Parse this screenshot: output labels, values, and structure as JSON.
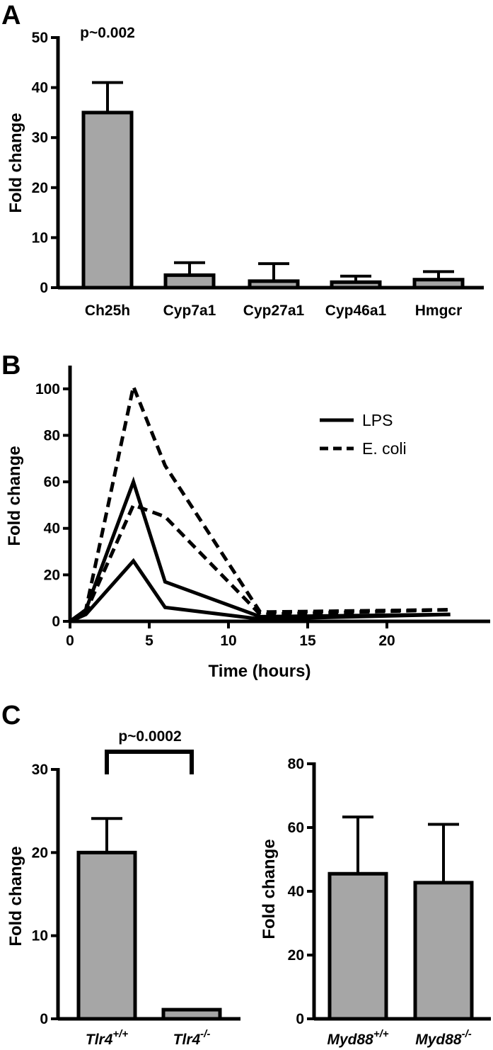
{
  "panels": {
    "A": {
      "letter": "A",
      "chart_data": {
        "type": "bar",
        "ylabel": "Fold change",
        "ylim": [
          0,
          50
        ],
        "yticks": [
          0,
          10,
          20,
          30,
          40,
          50
        ],
        "categories": [
          "Ch25h",
          "Cyp7a1",
          "Cyp27a1",
          "Cyp46a1",
          "Hmgcr"
        ],
        "values": [
          35,
          2.5,
          1.3,
          1.1,
          1.6
        ],
        "errors": [
          6,
          2.5,
          3.5,
          1.2,
          1.6
        ],
        "bar_color": "#a6a6a6",
        "annotation": "p~0.002"
      }
    },
    "B": {
      "letter": "B",
      "chart_data": {
        "type": "line",
        "xlabel": "Time (hours)",
        "ylabel": "Fold change",
        "xlim": [
          0,
          24
        ],
        "ylim": [
          0,
          110
        ],
        "xticks": [
          0,
          5,
          10,
          15,
          20
        ],
        "yticks": [
          0,
          20,
          40,
          60,
          80,
          100
        ],
        "legend": [
          "LPS",
          "E. coli"
        ],
        "legend_position": "top-right",
        "series": [
          {
            "legend": "LPS",
            "style": "solid",
            "x": [
              0,
              1,
              4,
              6,
              12,
              24
            ],
            "y": [
              0,
              5,
              60,
              17,
              2,
              3
            ]
          },
          {
            "legend": "LPS",
            "style": "solid",
            "x": [
              0,
              1,
              4,
              6,
              12,
              24
            ],
            "y": [
              0,
              3,
              26,
              6,
              1,
              3
            ]
          },
          {
            "legend": "E. coli",
            "style": "dashed",
            "x": [
              0,
              1,
              4,
              6,
              12,
              24
            ],
            "y": [
              0,
              5,
              101,
              67,
              4,
              5
            ]
          },
          {
            "legend": "E. coli",
            "style": "dashed",
            "x": [
              0,
              1,
              4,
              6,
              12,
              24
            ],
            "y": [
              0,
              4,
              50,
              45,
              3,
              5
            ]
          }
        ]
      }
    },
    "C": {
      "letter": "C",
      "left": {
        "chart_data": {
          "type": "bar",
          "ylabel": "Fold change",
          "ylim": [
            0,
            30
          ],
          "yticks": [
            0,
            10,
            20,
            30
          ],
          "categories": [
            {
              "base": "Tlr4",
              "sup": "+/+"
            },
            {
              "base": "Tlr4",
              "sup": "-/-"
            }
          ],
          "values": [
            20,
            1.1
          ],
          "errors": [
            4.1,
            0
          ],
          "bar_color": "#a6a6a6",
          "annotation": "p~0.0002"
        }
      },
      "right": {
        "chart_data": {
          "type": "bar",
          "ylabel": "Fold change",
          "ylim": [
            0,
            80
          ],
          "yticks": [
            0,
            20,
            40,
            60,
            80
          ],
          "categories": [
            {
              "base": "Myd88",
              "sup": "+/+"
            },
            {
              "base": "Myd88",
              "sup": "-/-"
            }
          ],
          "values": [
            45.5,
            42.7
          ],
          "errors": [
            17.8,
            18.3
          ],
          "bar_color": "#a6a6a6"
        }
      }
    }
  }
}
